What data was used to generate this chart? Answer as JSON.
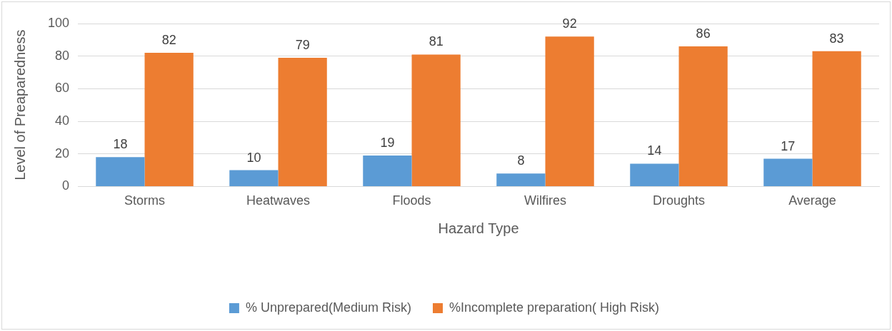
{
  "chart_data": {
    "type": "bar",
    "xlabel": "Hazard Type",
    "ylabel": "Level of Preaparedness",
    "categories": [
      "Storms",
      "Heatwaves",
      "Floods",
      "Wilfires",
      "Droughts",
      "Average"
    ],
    "series": [
      {
        "name": "% Unprepared(Medium Risk)",
        "color": "#5b9bd5",
        "values": [
          18,
          10,
          19,
          8,
          14,
          17
        ]
      },
      {
        "name": "%Incomplete preparation( High Risk)",
        "color": "#ed7d31",
        "values": [
          82,
          79,
          81,
          92,
          86,
          83
        ]
      }
    ],
    "ylim": [
      0,
      100
    ],
    "yticks": [
      0,
      20,
      40,
      60,
      80,
      100
    ],
    "grid": "y",
    "legend": "bottom",
    "data_labels": true
  }
}
